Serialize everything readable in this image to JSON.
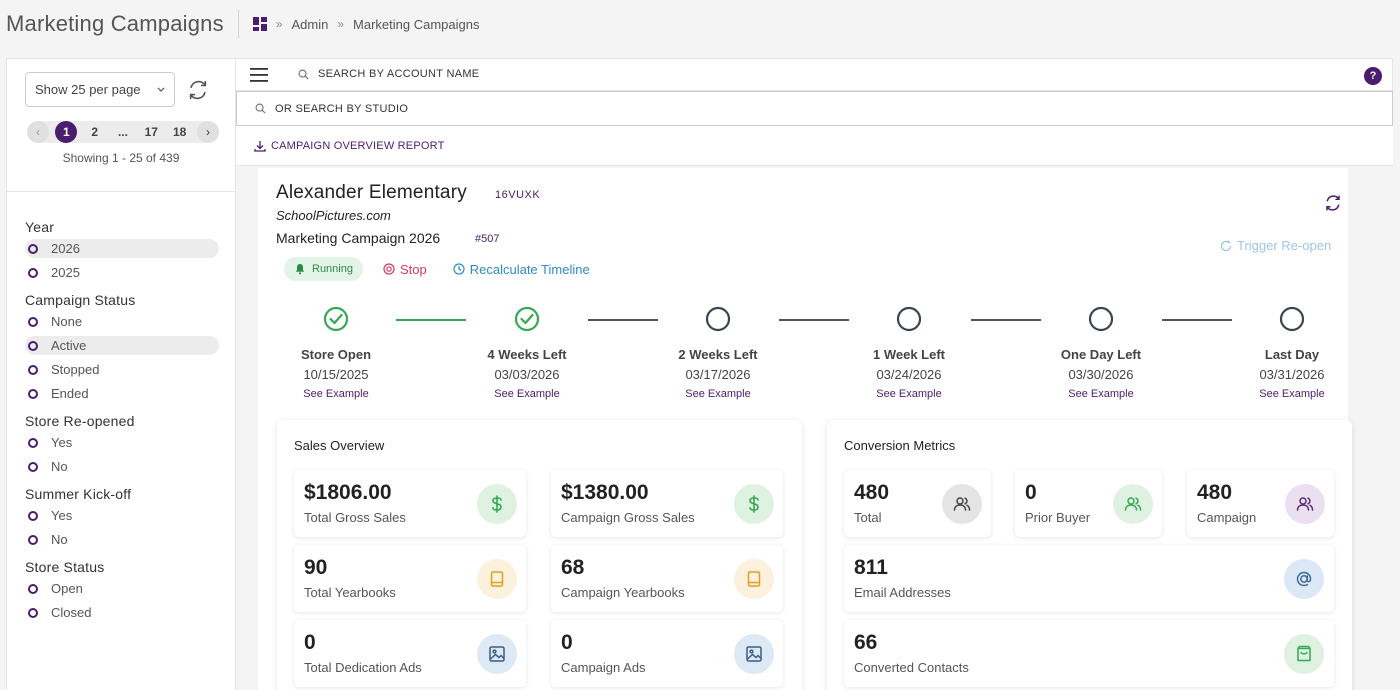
{
  "header": {
    "title": "Marketing Campaigns",
    "breadcrumb": [
      "Admin",
      "Marketing Campaigns"
    ]
  },
  "sidebar": {
    "per_page": "Show 25 per page",
    "pagination": {
      "pages": [
        "1",
        "2",
        "...",
        "17",
        "18"
      ],
      "current": "1"
    },
    "showing": "Showing 1 - 25 of 439",
    "filters": [
      {
        "title": "Year",
        "options": [
          "2026",
          "2025"
        ],
        "selected": "2026"
      },
      {
        "title": "Campaign Status",
        "options": [
          "None",
          "Active",
          "Stopped",
          "Ended"
        ],
        "selected": "Active"
      },
      {
        "title": "Store Re-opened",
        "options": [
          "Yes",
          "No"
        ],
        "selected": null
      },
      {
        "title": "Summer Kick-off",
        "options": [
          "Yes",
          "No"
        ],
        "selected": null
      },
      {
        "title": "Store Status",
        "options": [
          "Open",
          "Closed"
        ],
        "selected": null
      }
    ]
  },
  "search": {
    "account_placeholder": "SEARCH BY ACCOUNT NAME",
    "studio_placeholder": "OR SEARCH BY STUDIO",
    "report_link": "CAMPAIGN OVERVIEW REPORT",
    "help": "?"
  },
  "campaign": {
    "account_name": "Alexander Elementary",
    "account_code": "16VUXK",
    "site": "SchoolPictures.com",
    "campaign_name": "Marketing Campaign 2026",
    "campaign_number": "#507",
    "trigger_label": "Trigger Re-open",
    "status_badge": "Running",
    "stop_label": "Stop",
    "recalc_label": "Recalculate Timeline"
  },
  "timeline": [
    {
      "label": "Store Open",
      "date": "10/15/2025",
      "link": "See Example",
      "done": true
    },
    {
      "label": "4 Weeks Left",
      "date": "03/03/2026",
      "link": "See Example",
      "done": true
    },
    {
      "label": "2 Weeks Left",
      "date": "03/17/2026",
      "link": "See Example",
      "done": false
    },
    {
      "label": "1 Week Left",
      "date": "03/24/2026",
      "link": "See Example",
      "done": false
    },
    {
      "label": "One Day Left",
      "date": "03/30/2026",
      "link": "See Example",
      "done": false
    },
    {
      "label": "Last Day",
      "date": "03/31/2026",
      "link": "See Example",
      "done": false
    }
  ],
  "sales": {
    "title": "Sales Overview",
    "metrics": [
      {
        "value": "$1806.00",
        "label": "Total Gross Sales",
        "icon": "dollar-icon"
      },
      {
        "value": "$1380.00",
        "label": "Campaign Gross Sales",
        "icon": "dollar-icon"
      },
      {
        "value": "90",
        "label": "Total Yearbooks",
        "icon": "book-icon"
      },
      {
        "value": "68",
        "label": "Campaign Yearbooks",
        "icon": "book-icon"
      },
      {
        "value": "0",
        "label": "Total Dedication Ads",
        "icon": "image-icon"
      },
      {
        "value": "0",
        "label": "Campaign Ads",
        "icon": "image-icon"
      }
    ]
  },
  "conversion": {
    "title": "Conversion Metrics",
    "metrics": [
      {
        "value": "480",
        "label": "Total",
        "icon": "users-icon"
      },
      {
        "value": "0",
        "label": "Prior Buyer",
        "icon": "users-icon"
      },
      {
        "value": "480",
        "label": "Campaign",
        "icon": "users-icon"
      },
      {
        "value": "811",
        "label": "Email Addresses",
        "icon": "at-sign-icon"
      },
      {
        "value": "66",
        "label": "Converted Contacts",
        "icon": "shopping-bag-icon"
      }
    ]
  },
  "colors": {
    "brand": "#4b1d6e",
    "success": "#35a852",
    "danger": "#d43a63",
    "info": "#2e8bc7"
  }
}
